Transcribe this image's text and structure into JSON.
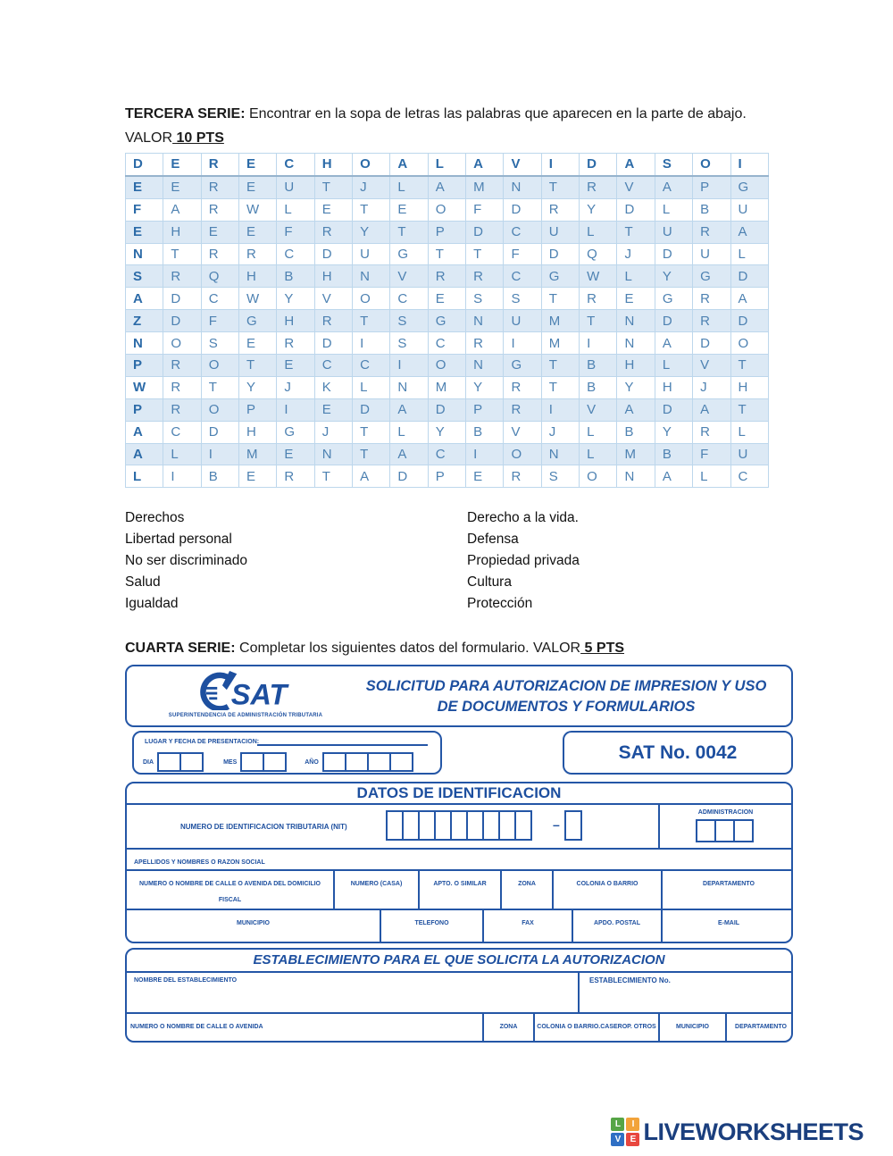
{
  "tercera": {
    "label": "TERCERA SERIE:",
    "body": " Encontrar en la sopa de letras las palabras que aparecen en la parte de abajo. VALOR",
    "points": " 10 PTS"
  },
  "cuarta": {
    "label": "CUARTA SERIE:",
    "body": " Completar los siguientes datos del formulario. VALOR",
    "points": " 5 PTS"
  },
  "word_search": {
    "rows": [
      "DERECHOALAVIDASOI",
      "EEREUTJLAMNTRVAPG",
      "FARWLETEOFDRYDLBU",
      "EHEEFRYTPDCULTURA",
      "NTRRCDUGTTFDQJDUL",
      "SRQHBHNVRRCGWLYGD",
      "ADCWYVOCESSTREGRA",
      "ZDFGHRTSGNUMTNDRD",
      "NOSERDISCRIMINADO",
      "PROTECCIONGTBHLVT",
      "WRTYJKLNMYRTBYHJH",
      "PROPIEDADPRIVADAT",
      "ACDHGJTLYBVJLBYRL",
      "ALIMENTACIONLMBFU",
      "LIBERTADPERSONALC"
    ]
  },
  "word_list": {
    "left": [
      "Derechos",
      "Libertad personal",
      "No ser discriminado",
      "Salud",
      "Igualdad"
    ],
    "right": [
      "Derecho a la vida.",
      "Defensa",
      "Propiedad privada",
      "Cultura",
      "Protección"
    ]
  },
  "sat_form": {
    "logo_text": "SAT",
    "logo_subtitle": "SUPERINTENDENCIA DE ADMINISTRACIÓN TRIBUTARIA",
    "title_line1": "SOLICITUD PARA AUTORIZACION DE IMPRESION Y USO",
    "title_line2": "DE DOCUMENTOS Y FORMULARIOS",
    "fecha_label": "LUGAR Y FECHA DE PRESENTACION:",
    "dia_label": "DIA",
    "mes_label": "MES",
    "anio_label": "AÑO",
    "sat_no": "SAT No. 0042",
    "datos_title": "DATOS DE IDENTIFICACION",
    "nit_label": "NUMERO DE IDENTIFICACION TRIBUTARIA (NIT)",
    "nit_dash": "–",
    "admin_label": "ADMINISTRACION",
    "apellidos_label": "APELLIDOS Y NOMBRES O RAZON SOCIAL",
    "domicilio_cells": [
      "NUMERO O NOMBRE DE CALLE O AVENIDA DEL DOMICILIO FISCAL",
      "NUMERO (CASA)",
      "APTO. O SIMILAR",
      "ZONA",
      "COLONIA O BARRIO",
      "DEPARTAMENTO"
    ],
    "municipio_cells": [
      "MUNICIPIO",
      "TELEFONO",
      "FAX",
      "APDO. POSTAL",
      "E-MAIL"
    ],
    "estab_title": "ESTABLECIMIENTO PARA EL QUE SOLICITA LA AUTORIZACION",
    "estab_nombre_label": "NOMBRE DEL ESTABLECIMIENTO",
    "estab_no_label": "ESTABLECIMIENTO No.",
    "estab_dir_cells": [
      "NUMERO O NOMBRE DE CALLE O AVENIDA",
      "ZONA",
      "COLONIA O BARRIO.CASEROP. OTROS",
      "MUNICIPIO",
      "DEPARTAMENTO"
    ],
    "boxes": {
      "dia": 2,
      "mes": 2,
      "anio": 4,
      "nit": 9,
      "nit_check": 1,
      "admin": 3
    },
    "colors": {
      "form_blue": "#1d4f9f"
    }
  },
  "footer": {
    "brand": "LIVEWORKSHEETS",
    "logo_letters": [
      "L",
      "I",
      "V",
      "E"
    ],
    "logo_colors": [
      "#56a546",
      "#f2a33a",
      "#2f6fc4",
      "#e8473f"
    ],
    "brand_color": "#1b3f7e"
  }
}
